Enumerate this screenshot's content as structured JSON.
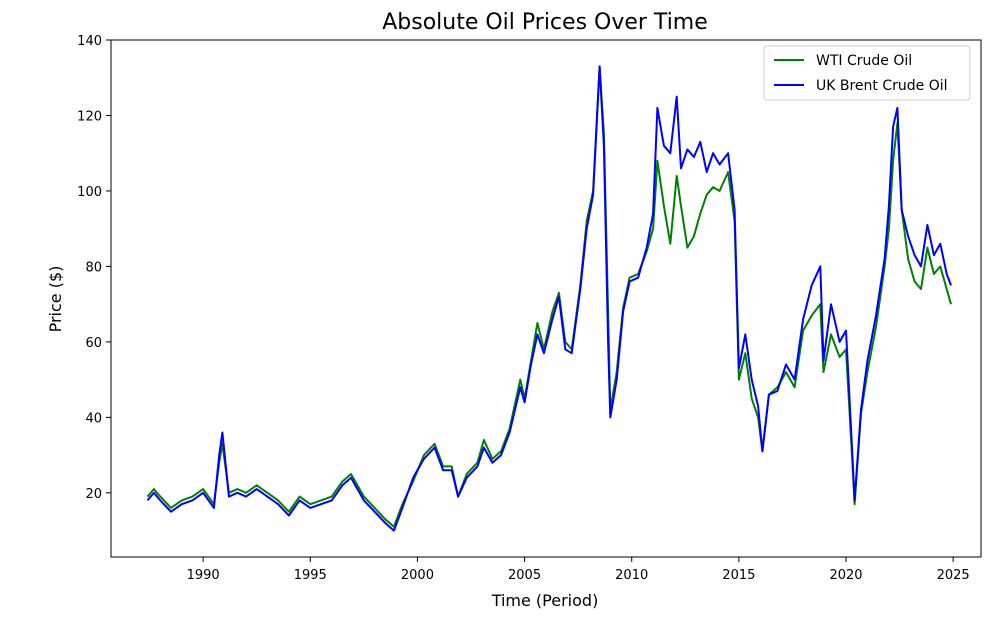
{
  "chart_data": {
    "type": "line",
    "title": "Absolute Oil Prices Over Time",
    "xlabel": "Time (Period)",
    "ylabel": "Price ($)",
    "xlim": [
      1985.7,
      2026.3
    ],
    "ylim": [
      3,
      140
    ],
    "xticks": [
      1990,
      1995,
      2000,
      2005,
      2010,
      2015,
      2020,
      2025
    ],
    "yticks": [
      20,
      40,
      60,
      80,
      100,
      120,
      140
    ],
    "grid": false,
    "legend_position": "top-right",
    "series": [
      {
        "name": "WTI Crude Oil",
        "color": "#008000",
        "x": [
          1987.4,
          1987.7,
          1988.0,
          1988.5,
          1989.0,
          1989.5,
          1990.0,
          1990.5,
          1990.75,
          1990.9,
          1991.2,
          1991.6,
          1992.0,
          1992.5,
          1993.0,
          1993.5,
          1994.0,
          1994.5,
          1995.0,
          1995.5,
          1996.0,
          1996.5,
          1996.9,
          1997.5,
          1998.0,
          1998.5,
          1998.9,
          1999.3,
          1999.8,
          2000.3,
          2000.8,
          2001.2,
          2001.6,
          2001.9,
          2002.3,
          2002.8,
          2003.1,
          2003.5,
          2003.9,
          2004.3,
          2004.8,
          2005.0,
          2005.3,
          2005.6,
          2005.9,
          2006.3,
          2006.6,
          2006.9,
          2007.2,
          2007.6,
          2007.9,
          2008.2,
          2008.5,
          2008.7,
          2008.9,
          2009.0,
          2009.3,
          2009.6,
          2009.9,
          2010.3,
          2010.7,
          2011.0,
          2011.2,
          2011.5,
          2011.8,
          2012.1,
          2012.3,
          2012.6,
          2012.9,
          2013.2,
          2013.5,
          2013.8,
          2014.1,
          2014.5,
          2014.8,
          2015.0,
          2015.3,
          2015.6,
          2015.9,
          2016.1,
          2016.4,
          2016.8,
          2017.2,
          2017.6,
          2018.0,
          2018.4,
          2018.8,
          2018.95,
          2019.3,
          2019.7,
          2020.0,
          2020.3,
          2020.4,
          2020.7,
          2021.0,
          2021.4,
          2021.8,
          2022.0,
          2022.2,
          2022.4,
          2022.6,
          2022.9,
          2023.2,
          2023.5,
          2023.8,
          2024.1,
          2024.4,
          2024.7,
          2024.9
        ],
        "values": [
          19,
          21,
          19,
          16,
          18,
          19,
          21,
          17,
          28,
          33,
          20,
          21,
          20,
          22,
          20,
          18,
          15,
          19,
          17,
          18,
          19,
          23,
          25,
          19,
          16,
          13,
          11,
          17,
          23,
          30,
          33,
          27,
          27,
          19,
          25,
          28,
          34,
          29,
          31,
          37,
          50,
          45,
          55,
          65,
          58,
          68,
          73,
          60,
          58,
          75,
          92,
          100,
          133,
          115,
          68,
          42,
          52,
          69,
          77,
          78,
          84,
          90,
          108,
          96,
          86,
          104,
          96,
          85,
          88,
          94,
          99,
          101,
          100,
          105,
          92,
          50,
          57,
          45,
          40,
          31,
          46,
          48,
          52,
          48,
          63,
          67,
          70,
          52,
          62,
          56,
          58,
          28,
          17,
          41,
          52,
          64,
          80,
          90,
          108,
          118,
          95,
          82,
          76,
          74,
          85,
          78,
          80,
          74,
          70
        ],
        "style": "solid"
      },
      {
        "name": "UK Brent Crude Oil",
        "color": "#0000ff",
        "x": [
          1987.4,
          1987.7,
          1988.0,
          1988.5,
          1989.0,
          1989.5,
          1990.0,
          1990.5,
          1990.75,
          1990.9,
          1991.2,
          1991.6,
          1992.0,
          1992.5,
          1993.0,
          1993.5,
          1994.0,
          1994.5,
          1995.0,
          1995.5,
          1996.0,
          1996.5,
          1996.9,
          1997.5,
          1998.0,
          1998.5,
          1998.9,
          1999.3,
          1999.8,
          2000.3,
          2000.8,
          2001.2,
          2001.6,
          2001.9,
          2002.3,
          2002.8,
          2003.1,
          2003.5,
          2003.9,
          2004.3,
          2004.8,
          2005.0,
          2005.3,
          2005.6,
          2005.9,
          2006.3,
          2006.6,
          2006.9,
          2007.2,
          2007.6,
          2007.9,
          2008.2,
          2008.5,
          2008.7,
          2008.9,
          2009.0,
          2009.3,
          2009.6,
          2009.9,
          2010.3,
          2010.7,
          2011.0,
          2011.2,
          2011.5,
          2011.8,
          2012.1,
          2012.3,
          2012.6,
          2012.9,
          2013.2,
          2013.5,
          2013.8,
          2014.1,
          2014.5,
          2014.8,
          2015.0,
          2015.3,
          2015.6,
          2015.9,
          2016.1,
          2016.4,
          2016.8,
          2017.2,
          2017.6,
          2018.0,
          2018.4,
          2018.8,
          2018.95,
          2019.3,
          2019.7,
          2020.0,
          2020.3,
          2020.4,
          2020.7,
          2021.0,
          2021.4,
          2021.8,
          2022.0,
          2022.2,
          2022.4,
          2022.6,
          2022.9,
          2023.2,
          2023.5,
          2023.8,
          2024.1,
          2024.4,
          2024.7,
          2024.9
        ],
        "values": [
          18,
          20,
          18,
          15,
          17,
          18,
          20,
          16,
          30,
          36,
          19,
          20,
          19,
          21,
          19,
          17,
          14,
          18,
          16,
          17,
          18,
          22,
          24,
          18,
          15,
          12,
          10,
          16,
          24,
          29,
          32,
          26,
          26,
          19,
          24,
          27,
          32,
          28,
          30,
          36,
          48,
          44,
          54,
          62,
          57,
          66,
          72,
          58,
          57,
          74,
          90,
          99,
          133,
          112,
          60,
          40,
          50,
          68,
          76,
          77,
          85,
          94,
          122,
          112,
          110,
          125,
          106,
          111,
          109,
          113,
          105,
          110,
          107,
          110,
          95,
          53,
          62,
          50,
          43,
          31,
          46,
          47,
          54,
          50,
          66,
          75,
          80,
          55,
          70,
          60,
          63,
          30,
          18,
          42,
          55,
          67,
          82,
          96,
          117,
          122,
          95,
          88,
          83,
          80,
          91,
          83,
          86,
          78,
          75
        ],
        "style": "solid"
      }
    ]
  }
}
